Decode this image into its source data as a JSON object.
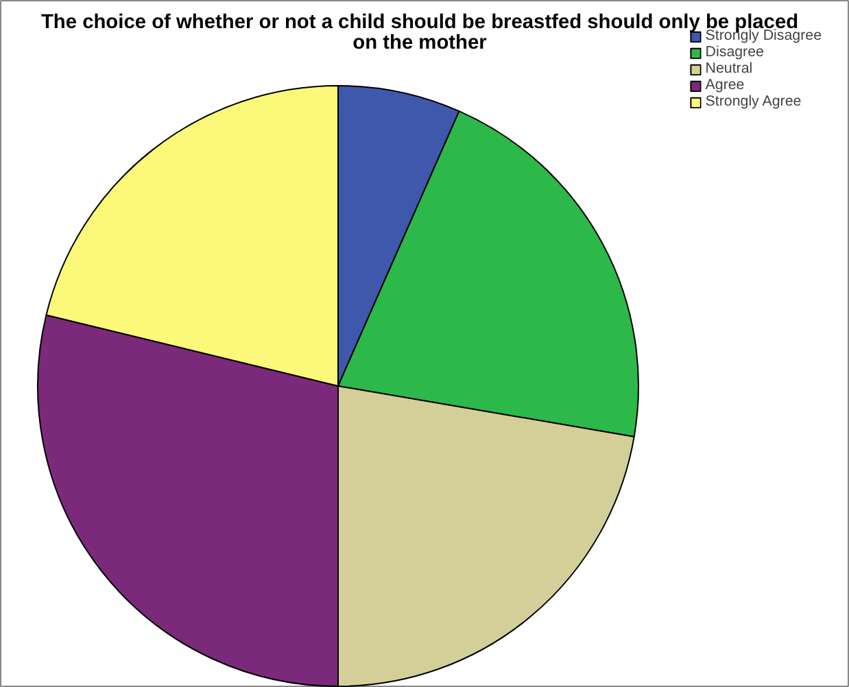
{
  "chart_data": {
    "type": "pie",
    "title": "The choice of whether or not a child should be breastfed should only be placed on the mother",
    "categories": [
      "Strongly Disagree",
      "Disagree",
      "Neutral",
      "Agree",
      "Strongly Agree"
    ],
    "values": [
      6.6,
      21.1,
      22.3,
      28.8,
      21.2
    ],
    "colors": [
      "#3e58ac",
      "#2db84a",
      "#d4cf99",
      "#7b2a7b",
      "#fbf87a"
    ],
    "legend": "top right"
  }
}
